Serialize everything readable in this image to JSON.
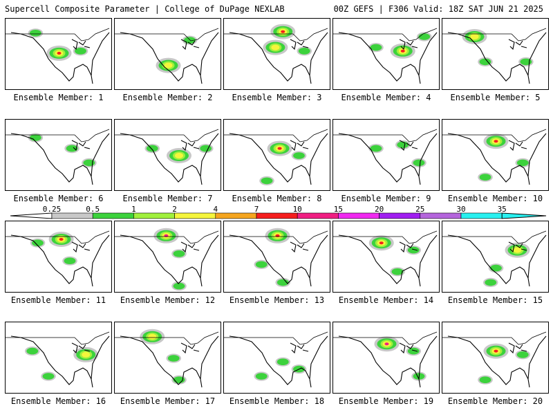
{
  "header": {
    "title_left": "Supercell Composite Parameter | College of DuPage NEXLAB",
    "title_right": "00Z GEFS | F306 Valid: 18Z SAT JUN 21 2025"
  },
  "colorbar": {
    "labels": [
      "0.25",
      "0.5",
      "1",
      "2",
      "4",
      "7",
      "10",
      "15",
      "20",
      "25",
      "30",
      "35"
    ],
    "colors": [
      "#c8c8c8",
      "#3cd23c",
      "#a0f03c",
      "#f5f53c",
      "#f5a51e",
      "#f51e1e",
      "#f01e82",
      "#f028f0",
      "#a01ef0",
      "#b464dc",
      "#28f0f0"
    ]
  },
  "members": [
    {
      "label": "Ensemble Member: 1",
      "blobs": [
        [
          0.5,
          0.48,
          3
        ],
        [
          0.28,
          0.2,
          1
        ],
        [
          0.7,
          0.45,
          1
        ]
      ]
    },
    {
      "label": "Ensemble Member: 2",
      "blobs": [
        [
          0.5,
          0.65,
          2
        ],
        [
          0.7,
          0.3,
          1
        ]
      ]
    },
    {
      "label": "Ensemble Member: 3",
      "blobs": [
        [
          0.55,
          0.18,
          3
        ],
        [
          0.48,
          0.4,
          2
        ],
        [
          0.75,
          0.45,
          1
        ]
      ]
    },
    {
      "label": "Ensemble Member: 4",
      "blobs": [
        [
          0.65,
          0.45,
          3
        ],
        [
          0.4,
          0.4,
          1
        ],
        [
          0.85,
          0.25,
          1
        ]
      ]
    },
    {
      "label": "Ensemble Member: 5",
      "blobs": [
        [
          0.3,
          0.25,
          2
        ],
        [
          0.4,
          0.6,
          1
        ],
        [
          0.78,
          0.6,
          1
        ]
      ]
    },
    {
      "label": "Ensemble Member: 6",
      "blobs": [
        [
          0.28,
          0.25,
          1
        ],
        [
          0.62,
          0.4,
          1
        ],
        [
          0.78,
          0.6,
          1
        ]
      ]
    },
    {
      "label": "Ensemble Member: 7",
      "blobs": [
        [
          0.6,
          0.5,
          2
        ],
        [
          0.35,
          0.4,
          1
        ],
        [
          0.85,
          0.4,
          1
        ]
      ]
    },
    {
      "label": "Ensemble Member: 8",
      "blobs": [
        [
          0.52,
          0.4,
          3
        ],
        [
          0.7,
          0.5,
          1
        ],
        [
          0.4,
          0.85,
          1
        ]
      ]
    },
    {
      "label": "Ensemble Member: 9",
      "blobs": [
        [
          0.4,
          0.4,
          1
        ],
        [
          0.65,
          0.35,
          1
        ],
        [
          0.8,
          0.6,
          1
        ]
      ]
    },
    {
      "label": "Ensemble Member: 10",
      "blobs": [
        [
          0.5,
          0.3,
          3
        ],
        [
          0.75,
          0.6,
          1
        ],
        [
          0.4,
          0.8,
          1
        ]
      ]
    },
    {
      "label": "Ensemble Member: 11",
      "blobs": [
        [
          0.52,
          0.25,
          3
        ],
        [
          0.3,
          0.3,
          1
        ],
        [
          0.6,
          0.55,
          1
        ]
      ]
    },
    {
      "label": "Ensemble Member: 12",
      "blobs": [
        [
          0.48,
          0.2,
          4
        ],
        [
          0.6,
          0.45,
          1
        ],
        [
          0.6,
          0.9,
          1
        ]
      ]
    },
    {
      "label": "Ensemble Member: 13",
      "blobs": [
        [
          0.5,
          0.2,
          3
        ],
        [
          0.35,
          0.6,
          1
        ],
        [
          0.55,
          0.85,
          1
        ]
      ]
    },
    {
      "label": "Ensemble Member: 14",
      "blobs": [
        [
          0.45,
          0.3,
          3
        ],
        [
          0.75,
          0.4,
          1
        ],
        [
          0.6,
          0.7,
          1
        ]
      ]
    },
    {
      "label": "Ensemble Member: 15",
      "blobs": [
        [
          0.7,
          0.4,
          2
        ],
        [
          0.5,
          0.65,
          1
        ],
        [
          0.45,
          0.85,
          1
        ]
      ]
    },
    {
      "label": "Ensemble Member: 16",
      "blobs": [
        [
          0.75,
          0.45,
          2
        ],
        [
          0.4,
          0.75,
          1
        ],
        [
          0.25,
          0.4,
          1
        ]
      ]
    },
    {
      "label": "Ensemble Member: 17",
      "blobs": [
        [
          0.35,
          0.2,
          2
        ],
        [
          0.55,
          0.5,
          1
        ],
        [
          0.6,
          0.8,
          1
        ]
      ]
    },
    {
      "label": "Ensemble Member: 18",
      "blobs": [
        [
          0.55,
          0.55,
          1
        ],
        [
          0.35,
          0.75,
          1
        ],
        [
          0.7,
          0.65,
          1
        ]
      ]
    },
    {
      "label": "Ensemble Member: 19",
      "blobs": [
        [
          0.5,
          0.3,
          4
        ],
        [
          0.75,
          0.4,
          1
        ],
        [
          0.8,
          0.75,
          1
        ]
      ]
    },
    {
      "label": "Ensemble Member: 20",
      "blobs": [
        [
          0.5,
          0.4,
          3
        ],
        [
          0.75,
          0.45,
          1
        ],
        [
          0.4,
          0.8,
          1
        ]
      ]
    }
  ]
}
